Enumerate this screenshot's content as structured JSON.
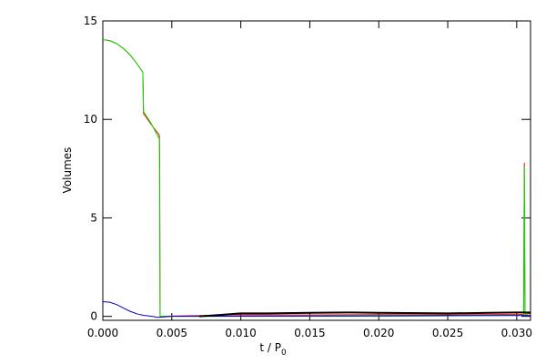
{
  "chart_data": {
    "type": "line",
    "xlabel": {
      "text": "t / P",
      "subscript": "0"
    },
    "ylabel": "Volumes",
    "xlim": [
      0,
      0.031
    ],
    "ylim": [
      -0.2,
      15
    ],
    "xticks": [
      {
        "value": 0,
        "label": "0.000"
      },
      {
        "value": 0.005,
        "label": "0.005"
      },
      {
        "value": 0.01,
        "label": "0.010"
      },
      {
        "value": 0.015,
        "label": "0.015"
      },
      {
        "value": 0.02,
        "label": "0.020"
      },
      {
        "value": 0.025,
        "label": "0.025"
      },
      {
        "value": 0.03,
        "label": "0.030"
      }
    ],
    "yticks": [
      0,
      5,
      10,
      15
    ],
    "series": [
      {
        "color": "#ff0000",
        "width": 1,
        "x": [
          0,
          0.0005,
          0.001,
          0.0015,
          0.002,
          0.0025,
          0.0029,
          0.00295,
          0.0035,
          0.0041,
          0.00412,
          0.00415,
          0.006,
          0.008,
          0.01,
          0.015,
          0.02,
          0.025,
          0.0305,
          0.03055,
          0.0306,
          0.031
        ],
        "y": [
          14.05,
          14.0,
          13.85,
          13.6,
          13.25,
          12.8,
          12.4,
          10.3,
          9.75,
          9.2,
          8.2,
          0,
          0.03,
          0.05,
          0.08,
          0.07,
          0.09,
          0.08,
          0.1,
          7.8,
          0.1,
          0.15
        ]
      },
      {
        "color": "#00dd00",
        "width": 1,
        "x": [
          0,
          0.0005,
          0.001,
          0.0015,
          0.002,
          0.0025,
          0.0029,
          0.00295,
          0.0035,
          0.0041,
          0.00415,
          0.005,
          0.01,
          0.02,
          0.0305,
          0.03055,
          0.0306,
          0.031
        ],
        "y": [
          14.05,
          14.0,
          13.85,
          13.6,
          13.25,
          12.8,
          12.4,
          10.4,
          9.8,
          9.0,
          0,
          0,
          0,
          0,
          0.05,
          7.6,
          0.1,
          0.2
        ]
      },
      {
        "color": "#0000cc",
        "width": 1,
        "x": [
          0,
          0.0005,
          0.001,
          0.0015,
          0.002,
          0.0025,
          0.003,
          0.0035,
          0.004,
          0.005,
          0.031
        ],
        "y": [
          0.75,
          0.72,
          0.6,
          0.42,
          0.25,
          0.12,
          0.05,
          0.01,
          -0.05,
          0,
          0.05
        ]
      },
      {
        "color": "#000000",
        "width": 2,
        "x": [
          0.007,
          0.008,
          0.009,
          0.01,
          0.012,
          0.015,
          0.018,
          0.02,
          0.022,
          0.025,
          0.028,
          0.03,
          0.031
        ],
        "y": [
          0,
          0.05,
          0.1,
          0.15,
          0.15,
          0.18,
          0.2,
          0.18,
          0.17,
          0.15,
          0.18,
          0.2,
          0.2
        ]
      }
    ]
  }
}
